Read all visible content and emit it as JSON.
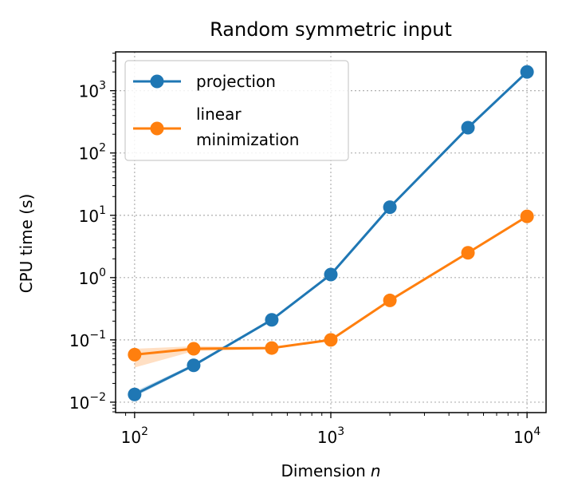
{
  "chart_data": {
    "type": "line",
    "title": "Random symmetric input",
    "xlabel": "Dimension",
    "xlabel_var": "n",
    "ylabel": "CPU time (s)",
    "xscale": "log",
    "yscale": "log",
    "xlim": [
      80,
      12500
    ],
    "ylim": [
      0.0068,
      4200
    ],
    "xticks": [
      {
        "value": 100,
        "base": "10",
        "exp": "2"
      },
      {
        "value": 1000,
        "base": "10",
        "exp": "3"
      },
      {
        "value": 10000,
        "base": "10",
        "exp": "4"
      }
    ],
    "yticks": [
      {
        "value": 0.01,
        "base": "10",
        "exp": "−2"
      },
      {
        "value": 0.1,
        "base": "10",
        "exp": "−1"
      },
      {
        "value": 1,
        "base": "10",
        "exp": "0"
      },
      {
        "value": 10,
        "base": "10",
        "exp": "1"
      },
      {
        "value": 100,
        "base": "10",
        "exp": "2"
      },
      {
        "value": 1000,
        "base": "10",
        "exp": "3"
      }
    ],
    "grid": true,
    "legend_position": "top-left",
    "x": [
      100,
      200,
      500,
      1000,
      2000,
      5000,
      10000
    ],
    "series": [
      {
        "name": "projection",
        "color": "#1f77b4",
        "values": [
          0.0133,
          0.039,
          0.21,
          1.12,
          13.5,
          255,
          2000
        ],
        "band_low": [
          0.0122,
          0.037,
          0.205,
          1.1,
          13.2,
          250,
          1960
        ],
        "band_high": [
          0.0148,
          0.041,
          0.215,
          1.15,
          13.8,
          260,
          2040
        ]
      },
      {
        "name": "linear minimization",
        "legend_lines": [
          "linear",
          "minimization"
        ],
        "color": "#ff7f0e",
        "values": [
          0.058,
          0.072,
          0.074,
          0.1,
          0.43,
          2.5,
          9.6
        ],
        "band_low": [
          0.036,
          0.066,
          0.071,
          0.097,
          0.42,
          2.45,
          9.4
        ],
        "band_high": [
          0.072,
          0.079,
          0.077,
          0.103,
          0.44,
          2.55,
          9.8
        ]
      }
    ]
  }
}
